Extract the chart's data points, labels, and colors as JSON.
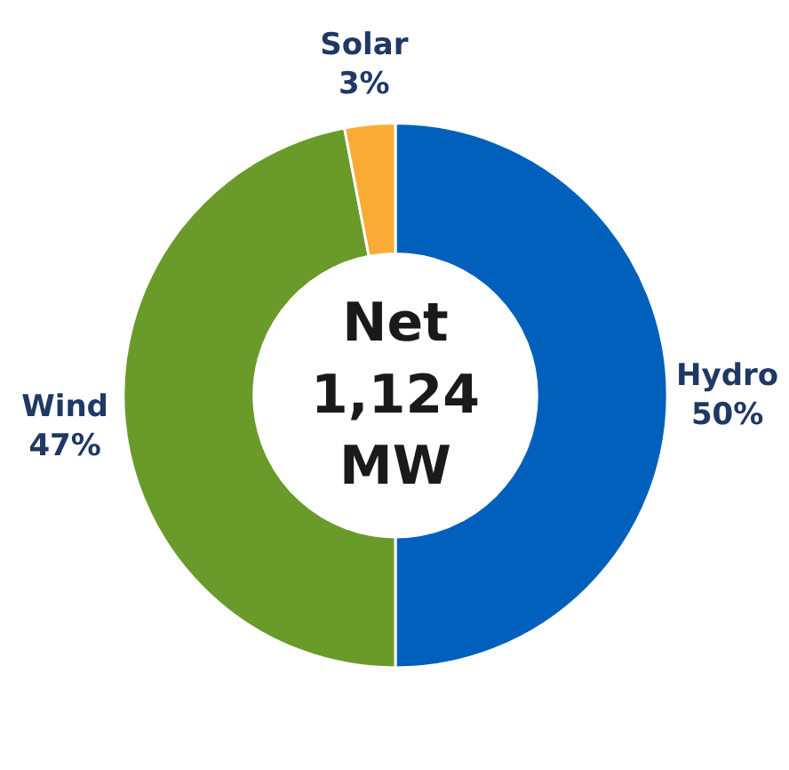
{
  "chart_data": {
    "type": "donut",
    "title": "Net\n1,124\nMW",
    "categories": [
      "Hydro",
      "Wind",
      "Solar"
    ],
    "values": [
      50,
      47,
      3
    ],
    "colors": [
      "#0060bb",
      "#6a9a2a",
      "#f9ab35"
    ],
    "value_labels": [
      "50%",
      "47%",
      "3%"
    ]
  }
}
